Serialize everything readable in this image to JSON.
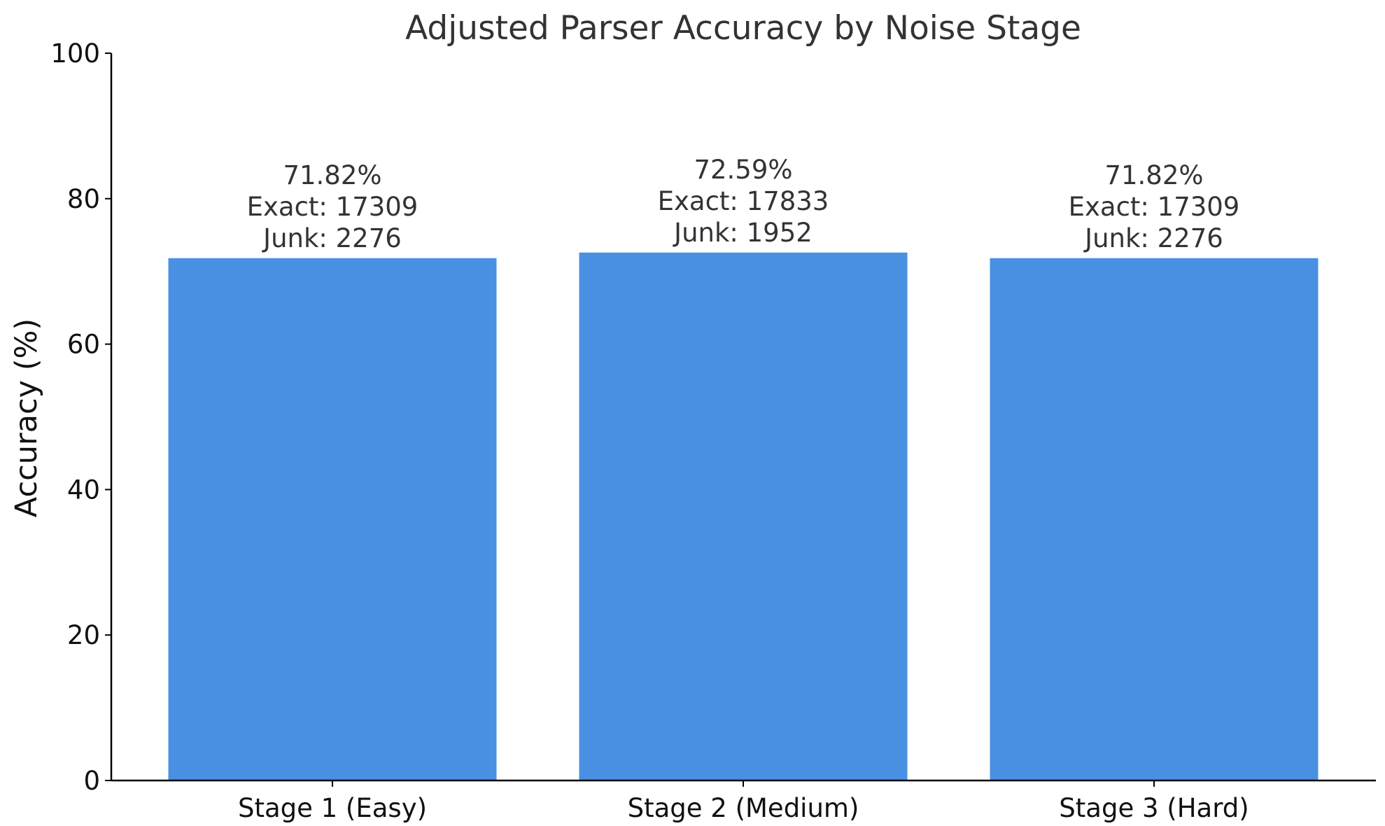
{
  "chart_data": {
    "type": "bar",
    "title": "Adjusted Parser Accuracy by Noise Stage",
    "xlabel": "",
    "ylabel": "Accuracy (%)",
    "ylim": [
      0,
      100
    ],
    "yticks": [
      0,
      20,
      40,
      60,
      80,
      100
    ],
    "categories": [
      "Stage 1 (Easy)",
      "Stage 2 (Medium)",
      "Stage 3 (Hard)"
    ],
    "values": [
      71.82,
      72.59,
      71.82
    ],
    "bar_labels": [
      [
        "71.82%",
        "Exact: 17309",
        "Junk: 2276"
      ],
      [
        "72.59%",
        "Exact: 17833",
        "Junk: 1952"
      ],
      [
        "71.82%",
        "Exact: 17309",
        "Junk: 2276"
      ]
    ],
    "bar_color": "#4A90E2",
    "grid": false,
    "legend": "none"
  }
}
